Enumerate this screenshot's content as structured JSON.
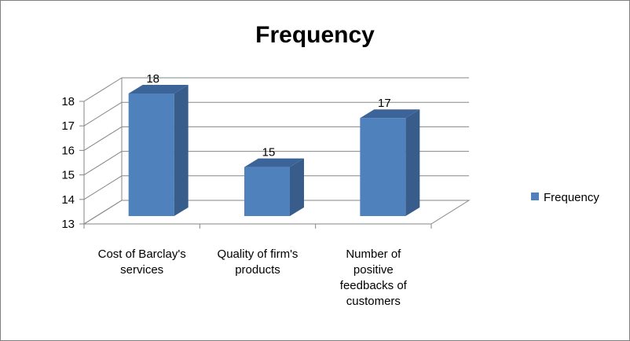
{
  "chart_data": {
    "type": "bar",
    "title": "Frequency",
    "categories": [
      [
        "Cost of Barclay's",
        "services"
      ],
      [
        "Quality of firm's",
        "products"
      ],
      [
        "Number of",
        "positive",
        "feedbacks of",
        "customers"
      ]
    ],
    "series": [
      {
        "name": "Frequency",
        "values": [
          18,
          15,
          17
        ]
      }
    ],
    "ylim": [
      13,
      18
    ],
    "yticks": [
      13,
      14,
      15,
      16,
      17,
      18
    ],
    "grid": true,
    "legend": "right",
    "three_d": true,
    "colors": {
      "bar_front": "#4f81bd",
      "bar_side": "#385d8a",
      "bar_top": "#3c6499",
      "grid": "#868686",
      "axis": "#868686"
    }
  }
}
